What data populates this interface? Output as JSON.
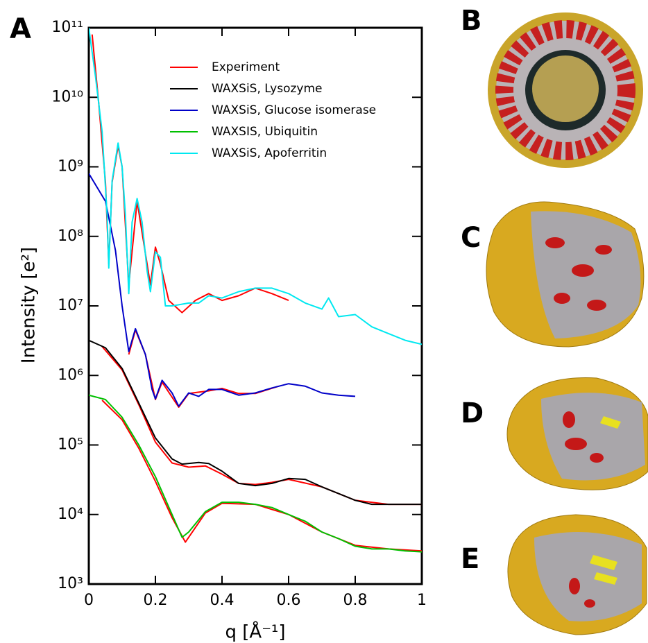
{
  "chart_data": {
    "type": "line",
    "ylabel": "Intensity [e²]",
    "xlabel": "q [Å⁻¹]",
    "xlim": [
      0,
      1
    ],
    "xticks": [
      0,
      0.2,
      0.4,
      0.6,
      0.8,
      1
    ],
    "ylim": [
      1000,
      100000000000
    ],
    "ylog": true,
    "yticks": [
      {
        "value": 1000,
        "label": "10³"
      },
      {
        "value": 10000,
        "label": "10⁴"
      },
      {
        "value": 100000,
        "label": "10⁵"
      },
      {
        "value": 1000000,
        "label": "10⁶"
      },
      {
        "value": 10000000,
        "label": "10⁷"
      },
      {
        "value": 100000000,
        "label": "10⁸"
      },
      {
        "value": 1000000000,
        "label": "10⁹"
      },
      {
        "value": 10000000000,
        "label": "10¹⁰"
      },
      {
        "value": 100000000000,
        "label": "10¹¹"
      }
    ],
    "legend": "upper center",
    "series": [
      {
        "name": "Experiment",
        "color": "#ff0000",
        "x": [
          0.01,
          0.03,
          0.05,
          0.06,
          0.07,
          0.088,
          0.1,
          0.12,
          0.145,
          0.185,
          0.2,
          0.215,
          0.24,
          0.28,
          0.32,
          0.36,
          0.4,
          0.45,
          0.5,
          0.55,
          0.6,
          null,
          0.12,
          0.14,
          0.17,
          0.2,
          0.22,
          0.27,
          0.3,
          0.36,
          0.4,
          0.45,
          0.5,
          0.57,
          null,
          0.04,
          0.1,
          0.15,
          0.2,
          0.25,
          0.3,
          0.35,
          0.4,
          0.45,
          0.5,
          0.55,
          0.6,
          0.7,
          0.8,
          0.9,
          1,
          null,
          0.04,
          0.1,
          0.15,
          0.2,
          0.25,
          0.29,
          0.35,
          0.4,
          0.5,
          0.6,
          0.7,
          0.8,
          0.9,
          1
        ],
        "values": [
          80000000000.0,
          8000000000.0,
          600000000.0,
          40000000.0,
          600000000.0,
          2000000000.0,
          1000000000.0,
          20000000.0,
          320000000.0,
          20000000.0,
          70000000.0,
          40000000.0,
          12000000.0,
          8000000.0,
          12000000.0,
          15000000.0,
          12000000.0,
          14000000.0,
          18000000.0,
          15000000.0,
          12000000.0,
          null,
          2000000.0,
          4500000.0,
          2000000.0,
          450000.0,
          800000.0,
          350000.0,
          550000.0,
          600000.0,
          650000.0,
          550000.0,
          550000.0,
          700000.0,
          null,
          2600000.0,
          1200000.0,
          380000.0,
          110000.0,
          55000.0,
          48000.0,
          50000.0,
          38000.0,
          28000.0,
          27000.0,
          29000.0,
          32000.0,
          25000.0,
          16000.0,
          14000.0,
          14000.0,
          null,
          440000.0,
          230000.0,
          90000.0,
          30000.0,
          9000.0,
          4000.0,
          10500.0,
          14500.0,
          14000.0,
          10000.0,
          5600.0,
          3600.0,
          3200.0,
          3000.0
        ]
      },
      {
        "name": "WAXSiS, Lysozyme",
        "color": "#000000",
        "x": [
          0,
          0.05,
          0.1,
          0.15,
          0.2,
          0.25,
          0.28,
          0.33,
          0.36,
          0.4,
          0.45,
          0.5,
          0.55,
          0.6,
          0.65,
          0.7,
          0.75,
          0.8,
          0.85,
          0.9,
          0.95,
          1
        ],
        "values": [
          3200000.0,
          2500000.0,
          1260000.0,
          400000.0,
          126000.0,
          63000.0,
          53000.0,
          56000.0,
          54000.0,
          42000.0,
          28000.0,
          26000.0,
          28000.0,
          33000.0,
          32000.0,
          25000.0,
          20000.0,
          16000.0,
          14000.0,
          14000.0,
          14000.0,
          14000.0
        ]
      },
      {
        "name": "WAXSiS, Glucose isomerase",
        "color": "#0000c8",
        "x": [
          0,
          0.05,
          0.08,
          0.1,
          0.12,
          0.14,
          0.17,
          0.19,
          0.2,
          0.22,
          0.25,
          0.27,
          0.3,
          0.33,
          0.36,
          0.4,
          0.45,
          0.5,
          0.55,
          0.6,
          0.65,
          0.7,
          0.75,
          0.8
        ],
        "values": [
          800000000.0,
          320000000.0,
          63000000.0,
          10000000.0,
          2200000.0,
          4700000.0,
          2000000.0,
          630000.0,
          460000.0,
          850000.0,
          560000.0,
          360000.0,
          560000.0,
          500000.0,
          630000.0,
          630000.0,
          520000.0,
          560000.0,
          660000.0,
          760000.0,
          700000.0,
          560000.0,
          520000.0,
          500000.0
        ]
      },
      {
        "name": "WAXSIS, Ubiquitin",
        "color": "#00c000",
        "x": [
          0,
          0.05,
          0.1,
          0.15,
          0.2,
          0.25,
          0.28,
          0.3,
          0.35,
          0.4,
          0.45,
          0.5,
          0.55,
          0.6,
          0.65,
          0.7,
          0.75,
          0.8,
          0.85,
          0.9,
          0.95,
          1
        ],
        "values": [
          520000.0,
          450000.0,
          250000.0,
          100000.0,
          35000.0,
          10000.0,
          4700.0,
          5600.0,
          11000.0,
          15000.0,
          15000.0,
          14000.0,
          12600.0,
          10000.0,
          8000.0,
          5600.0,
          4500.0,
          3500.0,
          3200.0,
          3200.0,
          3000.0,
          2900.0
        ]
      },
      {
        "name": "WAXSiS, Apoferritin",
        "color": "#00e8f0",
        "x": [
          0,
          0.02,
          0.04,
          0.055,
          0.06,
          0.07,
          0.088,
          0.1,
          0.11,
          0.12,
          0.13,
          0.145,
          0.16,
          0.175,
          0.185,
          0.2,
          0.215,
          0.23,
          0.25,
          0.3,
          0.33,
          0.36,
          0.4,
          0.45,
          0.5,
          0.55,
          0.6,
          0.65,
          0.7,
          0.72,
          0.75,
          0.8,
          0.85,
          0.9,
          0.95,
          1
        ],
        "values": [
          100000000000.0,
          20000000000.0,
          3200000000.0,
          200000000.0,
          35000000.0,
          630000000.0,
          2200000000.0,
          1000000000.0,
          200000000.0,
          15000000.0,
          160000000.0,
          350000000.0,
          160000000.0,
          32000000.0,
          16000000.0,
          60000000.0,
          50000000.0,
          10000000.0,
          10000000.0,
          11000000.0,
          11000000.0,
          14000000.0,
          13000000.0,
          16000000.0,
          18000000.0,
          18000000.0,
          15000000.0,
          11000000.0,
          9000000.0,
          13000000.0,
          7000000.0,
          7500000.0,
          5000000.0,
          4000000.0,
          3200000.0,
          2800000.0
        ]
      }
    ]
  },
  "panel_labels": [
    "A",
    "B",
    "C",
    "D",
    "E"
  ]
}
